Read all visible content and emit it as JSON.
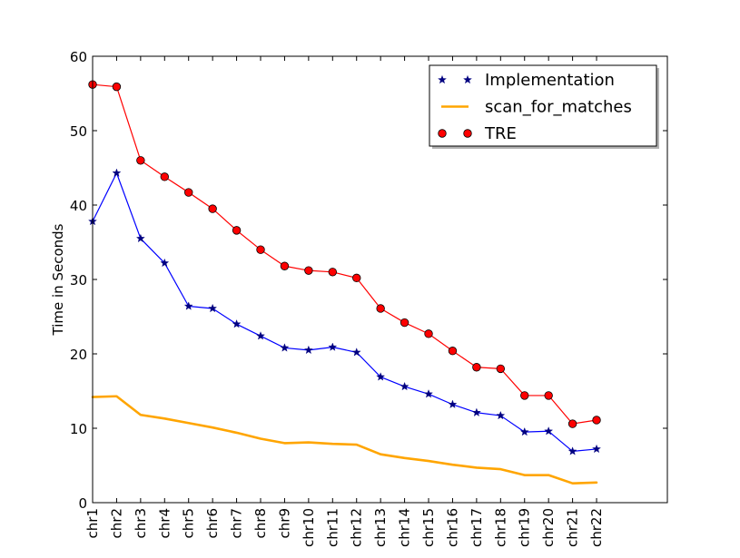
{
  "chart_data": {
    "type": "line",
    "title": "",
    "xlabel": "",
    "ylabel": "Time in Seconds",
    "ylim": [
      0,
      60
    ],
    "yticks": [
      0,
      10,
      20,
      30,
      40,
      50,
      60
    ],
    "categories": [
      "chr1",
      "chr2",
      "chr3",
      "chr4",
      "chr5",
      "chr6",
      "chr7",
      "chr8",
      "chr9",
      "chr10",
      "chr11",
      "chr12",
      "chr13",
      "chr14",
      "chr15",
      "chr16",
      "chr17",
      "chr18",
      "chr19",
      "chr20",
      "chr21",
      "chr22"
    ],
    "legend_position": "top-right",
    "series": [
      {
        "name": "Implementation",
        "color": "#0000ff",
        "marker_color": "#000080",
        "marker": "star",
        "values": [
          37.8,
          44.3,
          35.5,
          32.2,
          26.4,
          26.1,
          24.0,
          22.4,
          20.8,
          20.5,
          20.9,
          20.2,
          16.9,
          15.6,
          14.6,
          13.2,
          12.1,
          11.7,
          9.5,
          9.6,
          6.9,
          7.2
        ]
      },
      {
        "name": "scan_for_matches",
        "color": "#ffa500",
        "marker": "none",
        "values": [
          14.2,
          14.3,
          11.8,
          11.3,
          10.7,
          10.1,
          9.4,
          8.6,
          8.0,
          8.1,
          7.9,
          7.8,
          6.5,
          6.0,
          5.6,
          5.1,
          4.7,
          4.5,
          3.7,
          3.7,
          2.6,
          2.7
        ]
      },
      {
        "name": "TRE",
        "color": "#ff0000",
        "marker_color": "#ff0000",
        "marker": "circle",
        "values": [
          56.2,
          55.9,
          46.0,
          43.8,
          41.7,
          39.5,
          36.6,
          34.0,
          31.8,
          31.2,
          31.0,
          30.2,
          26.1,
          24.2,
          22.7,
          20.4,
          18.2,
          18.0,
          14.4,
          14.4,
          10.6,
          11.1
        ]
      }
    ]
  }
}
